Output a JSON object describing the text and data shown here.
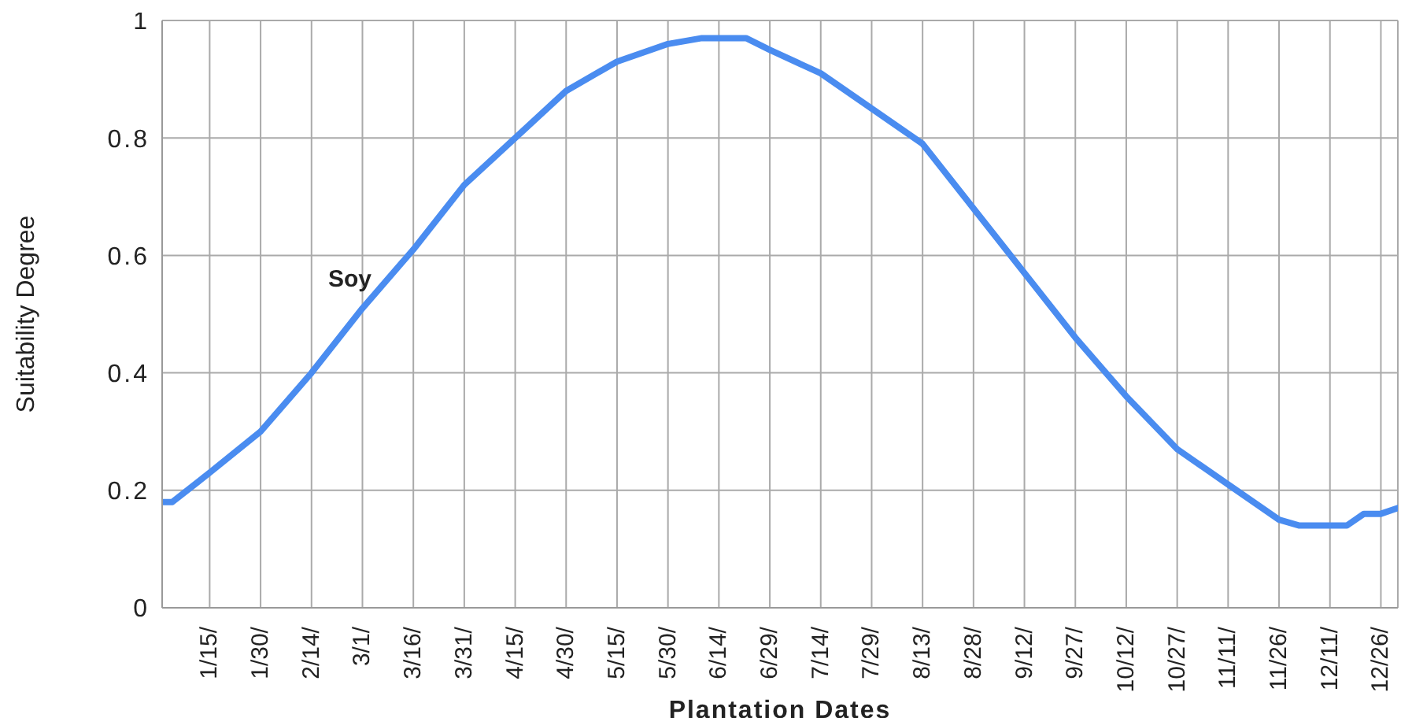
{
  "chart_data": {
    "type": "line",
    "xlabel": "Plantation Dates",
    "ylabel": "Suitability Degree",
    "xlim": [
      "--01-01",
      "--12-31"
    ],
    "xticks": [
      {
        "value": "--01-15",
        "label": "1/15/"
      },
      {
        "value": "--01-30",
        "label": "1/30/"
      },
      {
        "value": "--02-14",
        "label": "2/14/"
      },
      {
        "value": "--03-01",
        "label": "3/1/"
      },
      {
        "value": "--03-16",
        "label": "3/16/"
      },
      {
        "value": "--03-31",
        "label": "3/31/"
      },
      {
        "value": "--04-15",
        "label": "4/15/"
      },
      {
        "value": "--04-30",
        "label": "4/30/"
      },
      {
        "value": "--05-15",
        "label": "5/15/"
      },
      {
        "value": "--05-30",
        "label": "5/30/"
      },
      {
        "value": "--06-14",
        "label": "6/14/"
      },
      {
        "value": "--06-29",
        "label": "6/29/"
      },
      {
        "value": "--07-14",
        "label": "7/14/"
      },
      {
        "value": "--07-29",
        "label": "7/29/"
      },
      {
        "value": "--08-13",
        "label": "8/13/"
      },
      {
        "value": "--08-28",
        "label": "8/28/"
      },
      {
        "value": "--09-12",
        "label": "9/12/"
      },
      {
        "value": "--09-27",
        "label": "9/27/"
      },
      {
        "value": "--10-12",
        "label": "10/12/"
      },
      {
        "value": "--10-27",
        "label": "10/27/"
      },
      {
        "value": "--11-11",
        "label": "11/11/"
      },
      {
        "value": "--11-26",
        "label": "11/26/"
      },
      {
        "value": "--12-11",
        "label": "12/11/"
      },
      {
        "value": "--12-26",
        "label": "12/26/"
      }
    ],
    "ylim": [
      0,
      1
    ],
    "yticks": [
      0,
      0.2,
      0.4,
      0.6,
      0.8,
      1
    ],
    "grid": true,
    "marker": "none",
    "line_style": "solid",
    "x": [
      "--01-01",
      "--01-04",
      "--01-15",
      "--01-30",
      "--02-14",
      "--03-01",
      "--03-16",
      "--03-31",
      "--04-15",
      "--04-30",
      "--05-15",
      "--05-30",
      "--06-09",
      "--06-22",
      "--06-29",
      "--07-14",
      "--07-29",
      "--08-13",
      "--08-28",
      "--09-12",
      "--09-27",
      "--10-12",
      "--10-27",
      "--11-11",
      "--11-26",
      "--12-02",
      "--12-16",
      "--12-21",
      "--12-26",
      "--12-31"
    ],
    "series": [
      {
        "name": "Soy",
        "color": "#4a8cf0",
        "values": [
          0.18,
          0.18,
          0.23,
          0.3,
          0.4,
          0.51,
          0.61,
          0.72,
          0.8,
          0.88,
          0.93,
          0.96,
          0.97,
          0.97,
          0.95,
          0.91,
          0.85,
          0.79,
          0.68,
          0.57,
          0.46,
          0.36,
          0.27,
          0.21,
          0.15,
          0.14,
          0.14,
          0.16,
          0.16,
          0.17
        ]
      }
    ]
  }
}
